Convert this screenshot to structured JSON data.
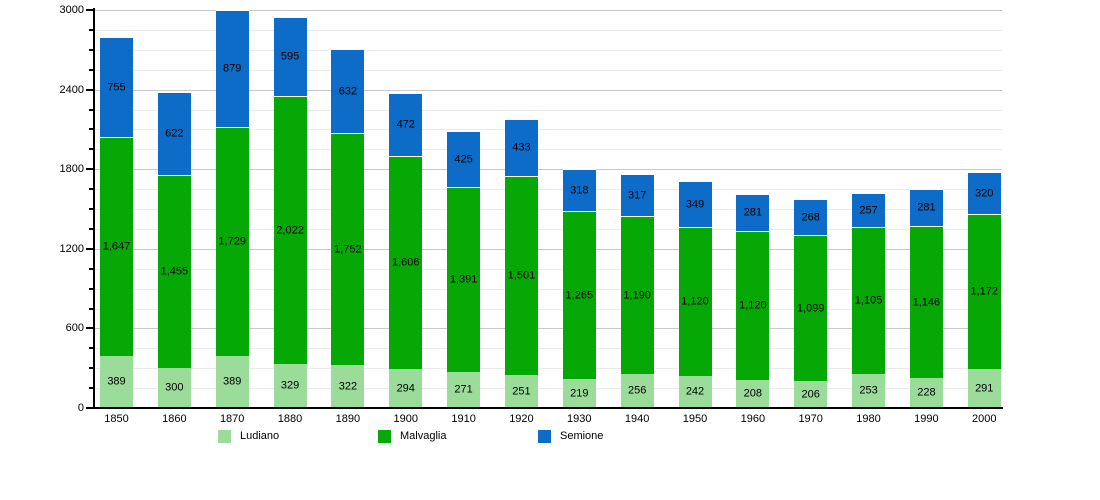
{
  "chart_data": {
    "type": "bar",
    "stacked": true,
    "title": "",
    "xlabel": "",
    "ylabel": "",
    "categories": [
      "1850",
      "1860",
      "1870",
      "1880",
      "1890",
      "1900",
      "1910",
      "1920",
      "1930",
      "1940",
      "1950",
      "1960",
      "1970",
      "1980",
      "1990",
      "2000"
    ],
    "series": [
      {
        "name": "Ludiano",
        "color": "#9bdc9b",
        "values": [
          389,
          300,
          389,
          329,
          322,
          294,
          271,
          251,
          219,
          256,
          242,
          208,
          206,
          253,
          228,
          291
        ]
      },
      {
        "name": "Malvaglia",
        "color": "#06a806",
        "values": [
          1647,
          1455,
          1729,
          2022,
          1752,
          1606,
          1391,
          1501,
          1265,
          1190,
          1120,
          1120,
          1099,
          1105,
          1146,
          1172
        ]
      },
      {
        "name": "Semione",
        "color": "#0c6cc8",
        "values": [
          755,
          622,
          879,
          595,
          632,
          472,
          425,
          433,
          318,
          317,
          349,
          281,
          268,
          257,
          281,
          320
        ]
      }
    ],
    "ylim": [
      0,
      3000
    ],
    "ytick_major": 600,
    "ytick_minor": 150,
    "yticklabels": [
      "0",
      "600",
      "1200",
      "1800",
      "2400",
      "3000"
    ],
    "grid": "horizontal",
    "legend_position": "bottom",
    "bar_value_labels": "inside-center",
    "thousands_separator": ",",
    "colors": {
      "axis": "#000000",
      "gridline_minor": "#ebebeb",
      "gridline_major": "#c8c8c8",
      "background": "#ffffff",
      "text": "#000000"
    }
  }
}
